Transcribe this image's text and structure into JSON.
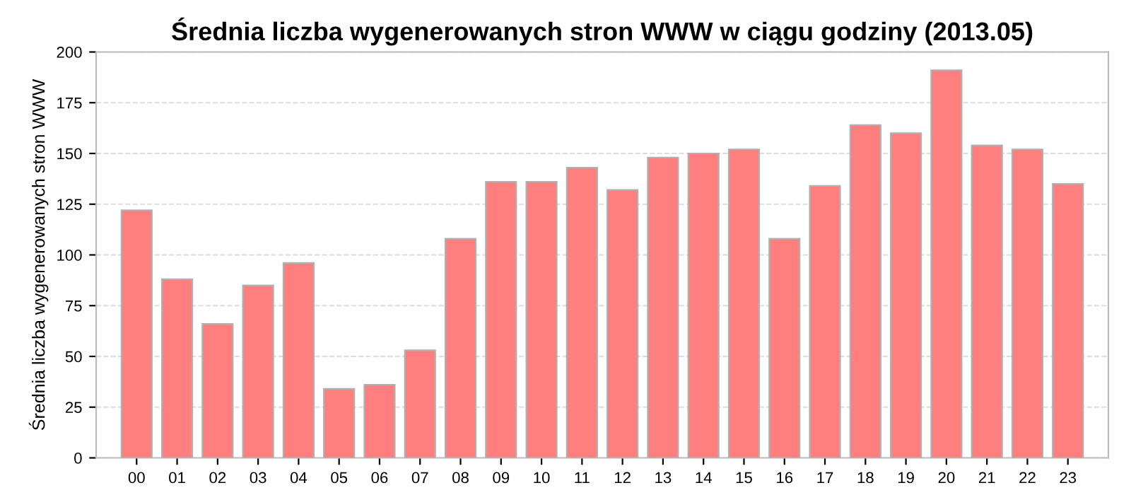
{
  "chart_data": {
    "type": "bar",
    "title": "Średnia liczba wygenerowanych stron WWW w ciągu godziny (2013.05)",
    "ylabel": "Średnia liczba wygenerowanych stron WWW",
    "categories": [
      "00",
      "01",
      "02",
      "03",
      "04",
      "05",
      "06",
      "07",
      "08",
      "09",
      "10",
      "11",
      "12",
      "13",
      "14",
      "15",
      "16",
      "17",
      "18",
      "19",
      "20",
      "21",
      "22",
      "23"
    ],
    "values": [
      122,
      88,
      66,
      85,
      96,
      34,
      36,
      53,
      108,
      136,
      136,
      143,
      132,
      148,
      150,
      152,
      108,
      134,
      164,
      160,
      191,
      154,
      152,
      135
    ],
    "color": "#ff7f7f",
    "ylim": [
      0,
      200
    ],
    "yticks": [
      0,
      25,
      50,
      75,
      100,
      125,
      150,
      175,
      200
    ],
    "grid": "y"
  }
}
